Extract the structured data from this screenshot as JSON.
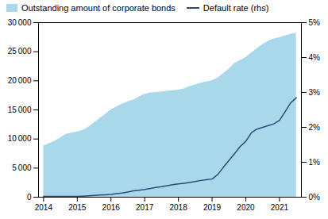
{
  "chart_data": {
    "type": "area",
    "x": [
      2014.0,
      2014.17,
      2014.33,
      2014.5,
      2014.67,
      2014.83,
      2015.0,
      2015.17,
      2015.33,
      2015.5,
      2015.67,
      2015.83,
      2016.0,
      2016.17,
      2016.33,
      2016.5,
      2016.67,
      2016.83,
      2017.0,
      2017.17,
      2017.33,
      2017.5,
      2017.67,
      2017.83,
      2018.0,
      2018.17,
      2018.33,
      2018.5,
      2018.67,
      2018.83,
      2019.0,
      2019.17,
      2019.33,
      2019.5,
      2019.67,
      2019.83,
      2020.0,
      2020.17,
      2020.33,
      2020.5,
      2020.67,
      2020.83,
      2021.0,
      2021.17,
      2021.33,
      2021.5
    ],
    "series": [
      {
        "name": "Outstanding amount of corporate bonds",
        "type": "area",
        "color": "#a8d8ea",
        "values": [
          8800,
          9200,
          9600,
          10200,
          10800,
          11000,
          11200,
          11500,
          12000,
          12800,
          13500,
          14200,
          15000,
          15500,
          16000,
          16400,
          16700,
          17200,
          17700,
          17900,
          18000,
          18100,
          18200,
          18300,
          18400,
          18600,
          19000,
          19300,
          19600,
          19800,
          20000,
          20500,
          21200,
          22000,
          23000,
          23500,
          24000,
          24800,
          25500,
          26200,
          26800,
          27200,
          27400,
          27700,
          28000,
          28200
        ]
      },
      {
        "name": "Default rate (rhs)",
        "type": "line",
        "color": "#2d4a7a",
        "axis": "y2",
        "values": [
          0.02,
          0.02,
          0.02,
          0.02,
          0.02,
          0.02,
          0.02,
          0.03,
          0.04,
          0.05,
          0.06,
          0.07,
          0.08,
          0.1,
          0.12,
          0.15,
          0.18,
          0.2,
          0.22,
          0.25,
          0.28,
          0.3,
          0.33,
          0.36,
          0.38,
          0.4,
          0.42,
          0.45,
          0.48,
          0.5,
          0.52,
          0.65,
          0.85,
          1.05,
          1.25,
          1.45,
          1.6,
          1.85,
          1.95,
          2.0,
          2.05,
          2.1,
          2.2,
          2.45,
          2.7,
          2.85
        ]
      }
    ],
    "xlim": [
      2013.85,
      2021.65
    ],
    "xticks": [
      2014,
      2015,
      2016,
      2017,
      2018,
      2019,
      2020,
      2021
    ],
    "ylim": [
      0,
      30000
    ],
    "yticks": [
      0,
      {
        "value": 5000,
        "label": "5 000"
      },
      {
        "value": 10000,
        "label": "10 000"
      },
      {
        "value": 15000,
        "label": "15 000"
      },
      {
        "value": 20000,
        "label": "20 000"
      },
      {
        "value": 25000,
        "label": "25 000"
      },
      {
        "value": 30000,
        "label": "30 000"
      }
    ],
    "y2lim": [
      0,
      5
    ],
    "y2ticks": [
      {
        "value": 0,
        "label": "0%"
      },
      {
        "value": 1,
        "label": "1%"
      },
      {
        "value": 2,
        "label": "2%"
      },
      {
        "value": 3,
        "label": "3%"
      },
      {
        "value": 4,
        "label": "4%"
      },
      {
        "value": 5,
        "label": "5%"
      }
    ],
    "grid": false,
    "legend": "upper left"
  }
}
